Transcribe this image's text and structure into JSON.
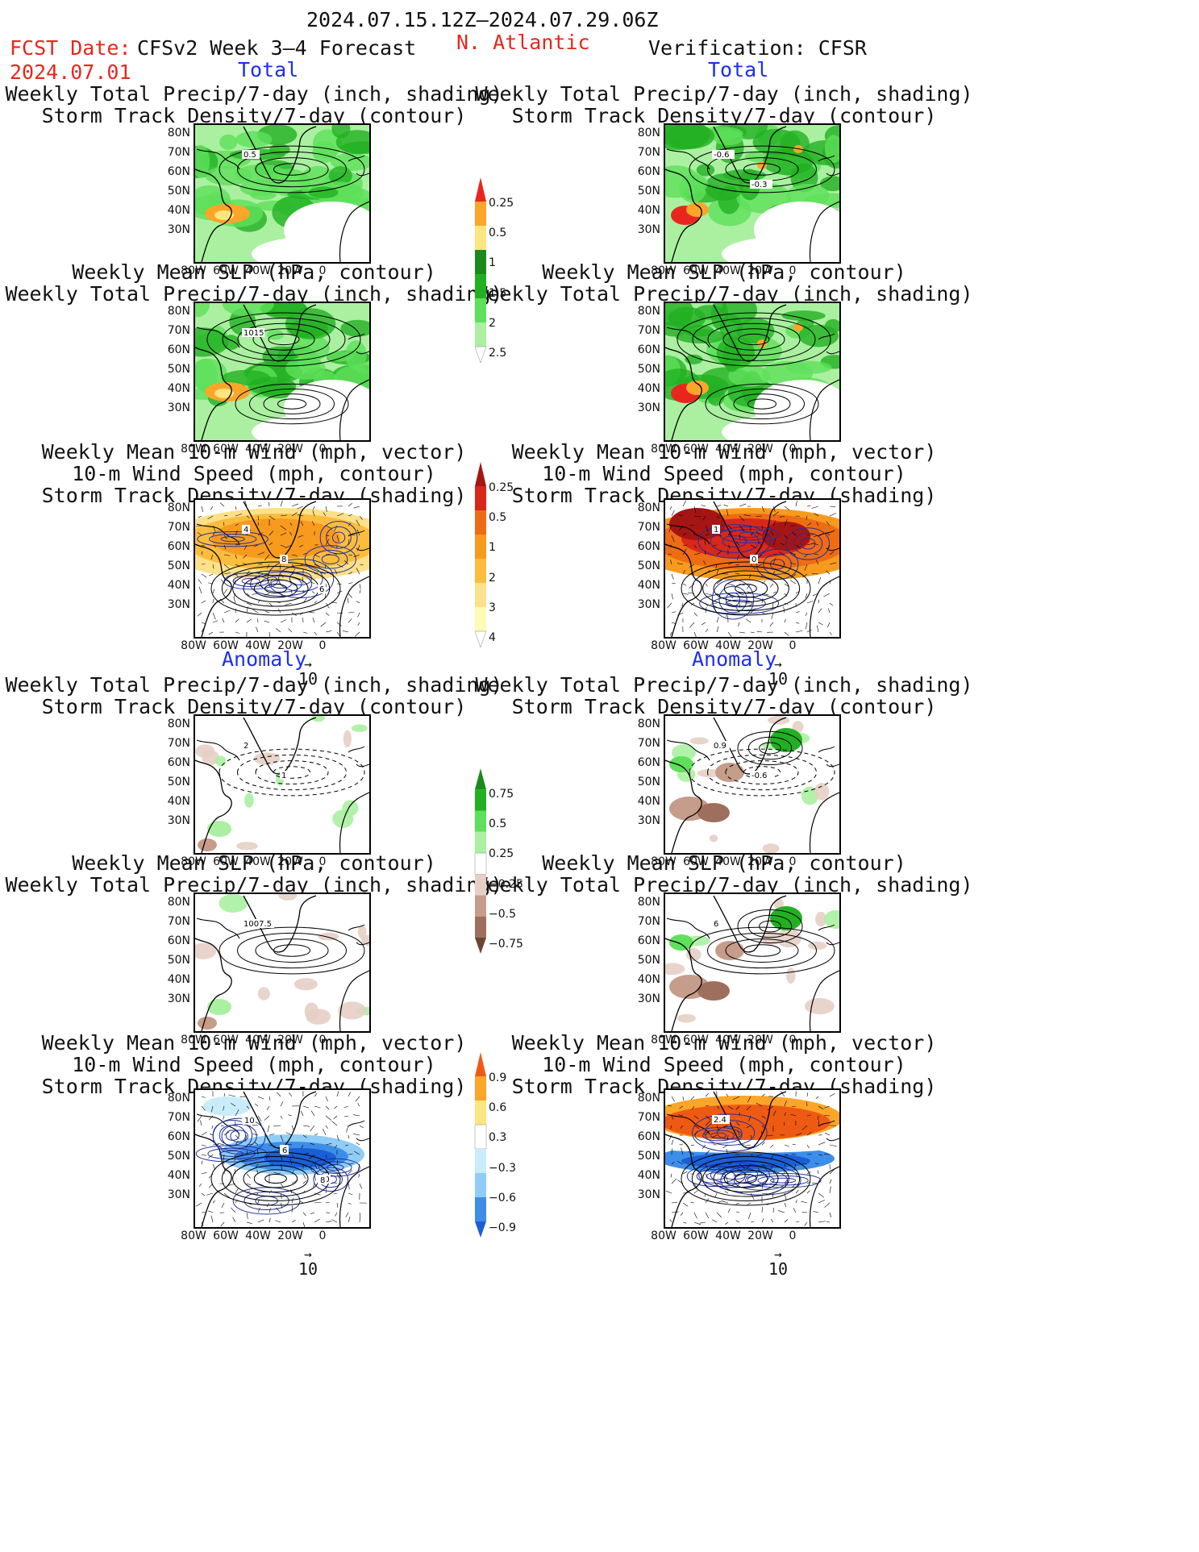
{
  "header": {
    "date_range": "2024.07.15.12Z–2024.07.29.06Z",
    "fcst_date_label": "FCST Date:",
    "fcst_date_value": "2024.07.01",
    "model": "CFSv2 Week 3–4 Forecast",
    "region": "N. Atlantic",
    "verification": "Verification: CFSR"
  },
  "sections": {
    "total": "Total",
    "anomaly": "Anomaly"
  },
  "titles": {
    "precip_storm": "Weekly Total Precip/7-day (inch, shading)\nStorm Track Density/7-day (contour)",
    "slp_precip": "Weekly Mean SLP (hPa, contour)\nWeekly Total Precip/7-day (inch, shading)",
    "wind_storm": "Weekly Mean 10-m Wind (mph, vector)\n10-m Wind Speed (mph, contour)\nStorm Track Density/7-day (shading)"
  },
  "axes": {
    "lat_ticks": [
      "80N",
      "70N",
      "60N",
      "50N",
      "40N",
      "30N"
    ],
    "lon_ticks": [
      "80W",
      "60W",
      "40W",
      "20W",
      "0"
    ]
  },
  "vector_reference": "10",
  "colorbars": [
    {
      "name": "precip-total",
      "colors": [
        "#ffffff",
        "#aaf0a0",
        "#5ee05a",
        "#22b022",
        "#1a8a1a",
        "#fde580",
        "#fba628",
        "#e9261d"
      ],
      "labels": [
        "0.25",
        "0.5",
        "1",
        "1.5",
        "2",
        "2.5"
      ]
    },
    {
      "name": "storm-total",
      "colors": [
        "#ffffff",
        "#fffab4",
        "#fde08a",
        "#fcbd3e",
        "#f79a1e",
        "#ee6c14",
        "#d8281a",
        "#a51515"
      ],
      "labels": [
        "0.25",
        "0.5",
        "1",
        "2",
        "3",
        "4"
      ]
    },
    {
      "name": "precip-anom",
      "colors": [
        "#6b4433",
        "#9e6f5c",
        "#c69c8a",
        "#e6cfc4",
        "#ffffff",
        "#aaf0a0",
        "#5ee05a",
        "#22b022",
        "#1a8a1a"
      ],
      "labels": [
        "0.75",
        "0.5",
        "0.25",
        "−0.25",
        "−0.5",
        "−0.75"
      ]
    },
    {
      "name": "storm-anom",
      "colors": [
        "#1b5fd6",
        "#3d8ee8",
        "#8fcdf6",
        "#c9ecfb",
        "#ffffff",
        "#fde580",
        "#fba628",
        "#ee5a14"
      ],
      "labels": [
        "0.9",
        "0.6",
        "0.3",
        "−0.3",
        "−0.6",
        "−0.9"
      ]
    }
  ],
  "panels": [
    {
      "id": "fc-total-precip",
      "labels": [
        "0.5"
      ]
    },
    {
      "id": "fc-total-slp",
      "labels": [
        "1015"
      ]
    },
    {
      "id": "fc-total-wind",
      "labels": [
        "4",
        "8",
        "6"
      ]
    },
    {
      "id": "vf-total-precip",
      "labels": [
        "2",
        "1"
      ]
    },
    {
      "id": "vf-total-slp",
      "labels": [
        "1007.5"
      ]
    },
    {
      "id": "vf-total-wind",
      "labels": [
        "6",
        "4",
        "10",
        "10",
        "6",
        "8"
      ]
    },
    {
      "id": "fc-anom-precip",
      "labels": [
        "-0.6",
        "-0.3"
      ]
    },
    {
      "id": "fc-anom-slp",
      "labels": []
    },
    {
      "id": "fc-anom-wind",
      "labels": [
        "1",
        "0"
      ]
    },
    {
      "id": "vf-anom-precip",
      "labels": [
        "0.9",
        "-0.6"
      ]
    },
    {
      "id": "vf-anom-slp",
      "labels": [
        "6"
      ]
    },
    {
      "id": "vf-anom-wind",
      "labels": [
        "2.4"
      ]
    }
  ]
}
